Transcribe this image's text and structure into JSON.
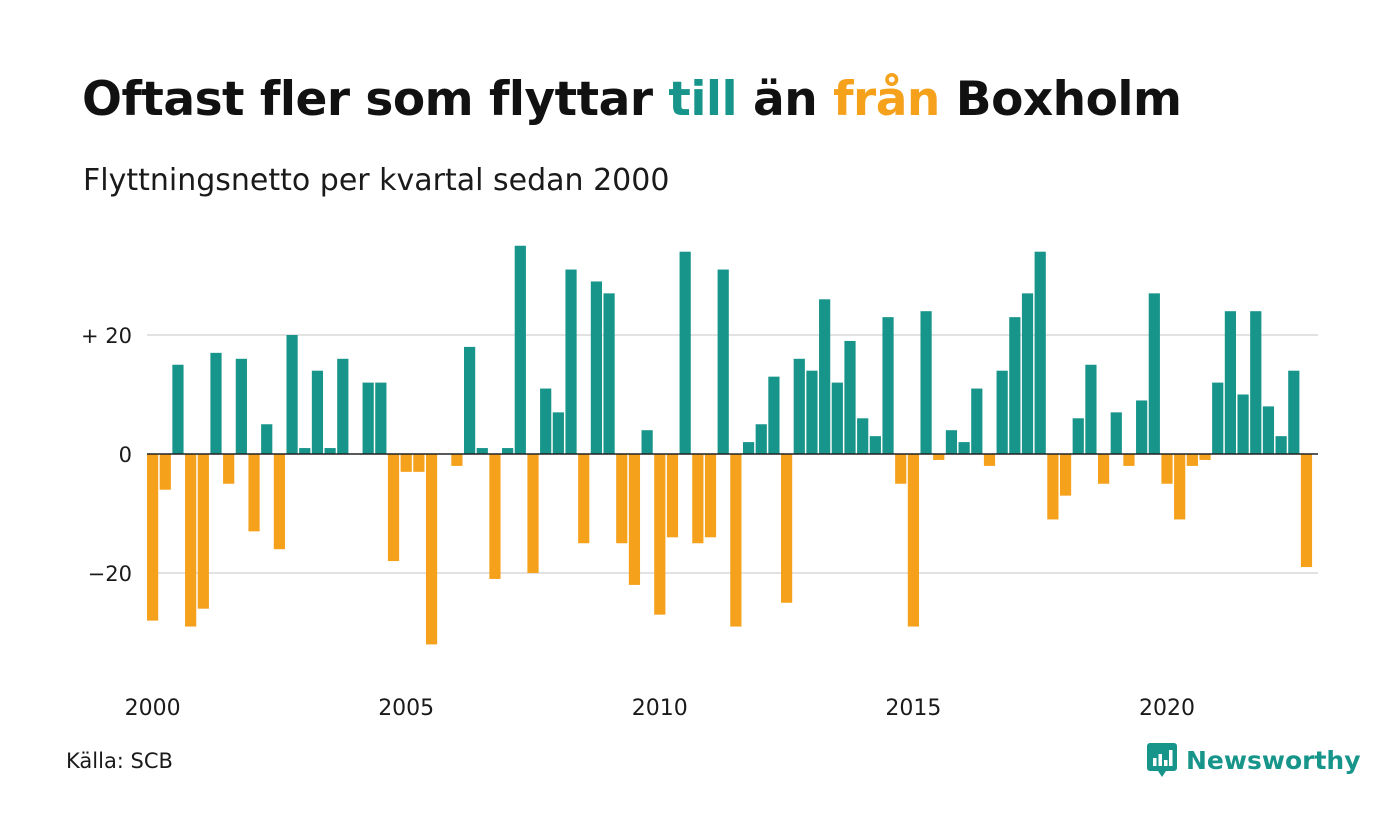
{
  "header": {
    "title_parts": [
      "Oftast fler som flyttar ",
      "till",
      " än ",
      "från",
      " Boxholm"
    ],
    "subtitle": "Flyttningsnetto per kvartal sedan 2000"
  },
  "footer": {
    "source": "Källa: SCB",
    "brand": "Newsworthy",
    "brand_icon": "bar-chart-icon"
  },
  "colors": {
    "positive": "#17958a",
    "negative": "#f5a11c",
    "grid": "#e2e2e2",
    "zero_line": "#222222"
  },
  "chart_data": {
    "type": "bar",
    "title": "Oftast fler som flyttar till än från Boxholm",
    "subtitle": "Flyttningsnetto per kvartal sedan 2000",
    "x_start": "2000 Q1",
    "x_labels": [
      "2000",
      "2005",
      "2010",
      "2015",
      "2020"
    ],
    "y_ticks": [
      {
        "value": 20,
        "label": "+ 20"
      },
      {
        "value": 0,
        "label": "0"
      },
      {
        "value": -20,
        "label": "−20"
      }
    ],
    "ylim": [
      -35,
      37
    ],
    "grid": true,
    "values": [
      -28,
      -6,
      15,
      -29,
      -26,
      17,
      -5,
      16,
      -13,
      5,
      -16,
      20,
      1,
      14,
      1,
      16,
      0,
      12,
      12,
      -18,
      -3,
      -3,
      -32,
      0,
      -2,
      18,
      1,
      -21,
      1,
      35,
      -20,
      11,
      7,
      31,
      -15,
      29,
      27,
      -15,
      -22,
      4,
      -27,
      -14,
      34,
      -15,
      -14,
      31,
      -29,
      2,
      5,
      13,
      -25,
      16,
      14,
      26,
      12,
      19,
      6,
      3,
      23,
      -5,
      -29,
      24,
      -1,
      4,
      2,
      11,
      -2,
      14,
      23,
      27,
      34,
      -11,
      -7,
      6,
      15,
      -5,
      7,
      -2,
      9,
      27,
      -5,
      -11,
      -2,
      -1,
      12,
      24,
      10,
      24,
      8,
      3,
      14,
      -19
    ]
  }
}
